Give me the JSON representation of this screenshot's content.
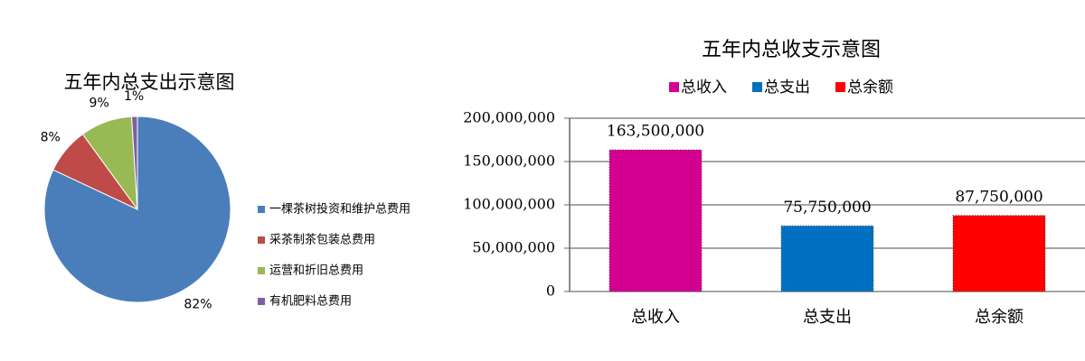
{
  "chart_data": [
    {
      "type": "pie",
      "title": "五年内总支出示意图",
      "categories": [
        "一棵茶树投资和维护总费用",
        "采茶制茶包装总费用",
        "运营和折旧总费用",
        "有机肥料总费用"
      ],
      "values": [
        82,
        8,
        9,
        1
      ],
      "value_labels": [
        "82%",
        "8%",
        "9%",
        "1%"
      ],
      "colors": [
        "#4a7ebb",
        "#be4b48",
        "#98b954",
        "#7d60a0"
      ],
      "legend": "right"
    },
    {
      "type": "bar",
      "title": "五年内总收支示意图",
      "categories": [
        "总收入",
        "总支出",
        "总余额"
      ],
      "values": [
        163500000,
        75750000,
        87750000
      ],
      "value_labels": [
        "163,500,000",
        "75,750,000",
        "87,750,000"
      ],
      "colors": [
        "#d4008f",
        "#0070c0",
        "#ff0000"
      ],
      "ylim": [
        0,
        200000000
      ],
      "yticks": [
        0,
        {
          "value": 50000000,
          "label": "50,000,000"
        },
        {
          "value": 100000000,
          "label": "100,000,000"
        },
        {
          "value": 150000000,
          "label": "150,000,000"
        },
        {
          "value": 200000000,
          "label": "200,000,000"
        }
      ],
      "grid": true,
      "legend": "top"
    }
  ]
}
